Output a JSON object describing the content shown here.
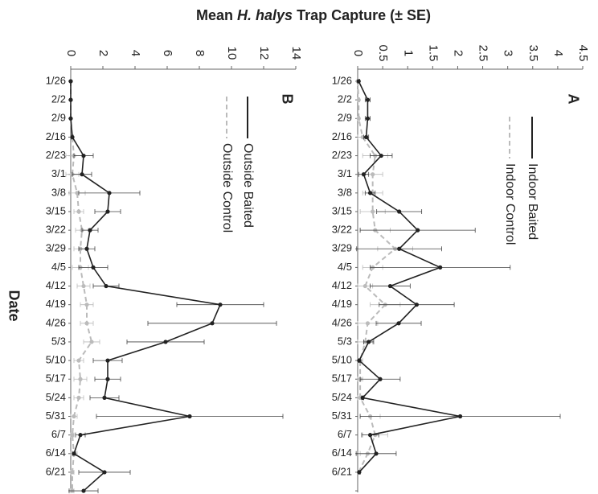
{
  "title": {
    "pre": "Mean ",
    "italic": "H. halys",
    "post": " Trap Capture (± SE)"
  },
  "xlabel": "Date",
  "chart_data": [
    {
      "type": "line",
      "label": "A",
      "categories": [
        "1/26",
        "2/2",
        "2/9",
        "2/16",
        "2/23",
        "3/1",
        "3/8",
        "3/15",
        "3/22",
        "3/29",
        "4/5",
        "4/12",
        "4/19",
        "4/26",
        "5/3",
        "5/10",
        "5/17",
        "5/24",
        "5/31",
        "6/7",
        "6/14",
        "6/21",
        null
      ],
      "ylim": [
        0,
        4.5
      ],
      "yticks": [
        0,
        0.5,
        1,
        1.5,
        2,
        2.5,
        3,
        3.5,
        4,
        4.5
      ],
      "series": [
        {
          "name": "Indoor Baited",
          "color": "#222222",
          "dashed": false,
          "values": [
            0.02,
            0.2,
            0.2,
            0.17,
            0.47,
            0.12,
            0.25,
            0.83,
            1.2,
            0.83,
            1.65,
            0.65,
            1.18,
            0.82,
            0.22,
            0.03,
            0.45,
            0.1,
            2.05,
            0.25,
            0.37,
            0.03,
            null
          ],
          "errors": [
            0.02,
            0.05,
            0.05,
            0.05,
            0.22,
            0.1,
            0.1,
            0.45,
            1.15,
            0.85,
            1.4,
            0.4,
            0.75,
            0.45,
            0.1,
            0.02,
            0.4,
            0.02,
            2.0,
            0.17,
            0.4,
            0.02,
            null
          ]
        },
        {
          "name": "Indoor Control",
          "color": "#bbbbbb",
          "dashed": true,
          "values": [
            0,
            0.02,
            0.02,
            0.1,
            0.35,
            0.3,
            0.3,
            0.3,
            0.35,
            0.75,
            0.3,
            0.15,
            0.55,
            0.2,
            0.15,
            0.05,
            0.05,
            0.05,
            0.25,
            0.35,
            0.2,
            0.02,
            null
          ],
          "errors": [
            0,
            0.02,
            0.02,
            0.1,
            0.25,
            0.2,
            0.2,
            0.25,
            0.3,
            0.35,
            0.2,
            0.15,
            0.3,
            0.2,
            0.15,
            0.05,
            0.05,
            0.05,
            0.2,
            0.25,
            0.15,
            0.02,
            null
          ]
        }
      ]
    },
    {
      "type": "line",
      "label": "B",
      "categories": [
        "1/26",
        "2/2",
        "2/9",
        "2/16",
        "2/23",
        "3/1",
        "3/8",
        "3/15",
        "3/22",
        "3/29",
        "4/5",
        "4/12",
        "4/19",
        "4/26",
        "5/3",
        "5/10",
        "5/17",
        "5/24",
        "5/31",
        "6/7",
        "6/14",
        "6/21",
        null
      ],
      "ylim": [
        0,
        14
      ],
      "yticks": [
        0,
        2,
        4,
        6,
        8,
        10,
        12,
        14
      ],
      "series": [
        {
          "name": "Outside Baited",
          "color": "#222222",
          "dashed": false,
          "values": [
            0,
            0,
            0,
            0.1,
            0.8,
            0.7,
            2.4,
            2.3,
            1.2,
            1.0,
            1.4,
            2.2,
            9.3,
            8.8,
            5.9,
            2.3,
            2.3,
            2.1,
            7.4,
            0.6,
            0.2,
            2.1,
            0.8
          ],
          "errors": [
            0,
            0,
            0,
            0.05,
            0.6,
            0.6,
            1.9,
            0.8,
            0.5,
            0.5,
            0.9,
            0.8,
            2.7,
            4.0,
            2.4,
            0.9,
            0.8,
            0.9,
            5.8,
            0.3,
            0.1,
            1.6,
            0.9
          ]
        },
        {
          "name": "Outside Control",
          "color": "#bbbbbb",
          "dashed": true,
          "values": [
            0,
            0,
            0,
            0.1,
            0.2,
            0.1,
            0.4,
            0.5,
            0.7,
            0.6,
            0.6,
            0.8,
            1.0,
            1.0,
            1.3,
            0.5,
            0.6,
            0.5,
            0.2,
            0.1,
            0.2,
            0.1,
            0.1
          ],
          "errors": [
            0,
            0,
            0,
            0.05,
            0.5,
            0.4,
            0.5,
            0.3,
            0.4,
            0.4,
            0.5,
            0.4,
            0.4,
            0.4,
            0.5,
            0.3,
            0.4,
            0.3,
            0.2,
            0.1,
            0.2,
            0.1,
            0.1
          ]
        }
      ]
    }
  ]
}
